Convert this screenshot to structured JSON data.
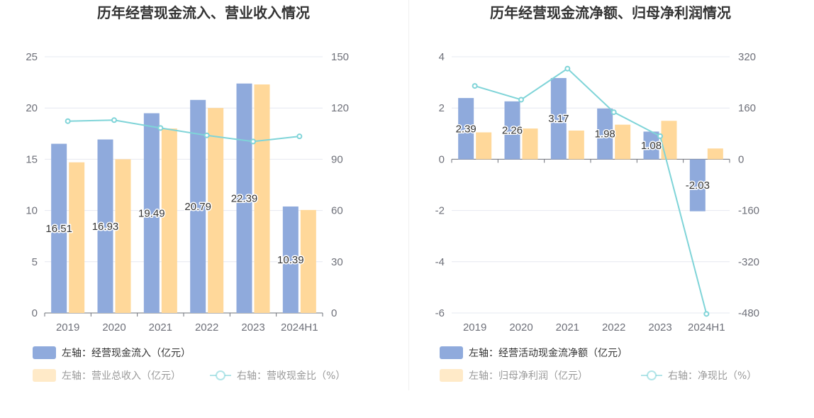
{
  "colors": {
    "bar_blue": "#8faadc",
    "bar_orange": "#ffd89a",
    "line_teal": "#7fd4d8",
    "axis": "#6e7079",
    "grid": "#e6e8f0",
    "title": "#333333",
    "legend_text_active": "#333333",
    "legend_text_muted": "#999999"
  },
  "chart_data": [
    {
      "type": "bar",
      "title": "历年经营现金流入、营业收入情况",
      "categories": [
        "2019",
        "2020",
        "2021",
        "2022",
        "2023",
        "2024H1"
      ],
      "left_axis": {
        "ylim": [
          0,
          25
        ],
        "ticks": [
          "0",
          "5",
          "10",
          "15",
          "20",
          "25"
        ]
      },
      "right_axis": {
        "ylim": [
          0,
          150
        ],
        "ticks": [
          "0",
          "30",
          "60",
          "90",
          "120",
          "150"
        ]
      },
      "grid": true,
      "legend_position": "bottom-left",
      "series": [
        {
          "name": "左轴：经营现金流入（亿元）",
          "type": "bar",
          "axis": "left",
          "color": "#8faadc",
          "values": [
            16.51,
            16.93,
            19.49,
            20.79,
            22.39,
            10.39
          ],
          "show_labels": true,
          "labels": [
            "16.51",
            "16.93",
            "19.49",
            "20.79",
            "22.39",
            "10.39"
          ]
        },
        {
          "name": "左轴：营业总收入（亿元）",
          "type": "bar",
          "axis": "left",
          "color": "#ffd89a",
          "values": [
            14.7,
            15.0,
            18.0,
            20.0,
            22.3,
            10.05
          ],
          "show_labels": false
        },
        {
          "name": "右轴：营收现金比（%）",
          "type": "line",
          "axis": "right",
          "color": "#7fd4d8",
          "values": [
            112.3,
            112.9,
            108.3,
            104.0,
            100.4,
            103.4
          ],
          "show_labels": false
        }
      ]
    },
    {
      "type": "bar",
      "title": "历年经营现金流净额、归母净利润情况",
      "categories": [
        "2019",
        "2020",
        "2021",
        "2022",
        "2023",
        "2024H1"
      ],
      "left_axis": {
        "ylim": [
          -6,
          4
        ],
        "ticks": [
          "-6",
          "-4",
          "-2",
          "0",
          "2",
          "4"
        ]
      },
      "right_axis": {
        "ylim": [
          -480,
          320
        ],
        "ticks": [
          "-480",
          "-320",
          "-160",
          "0",
          "160",
          "320"
        ]
      },
      "grid": true,
      "legend_position": "bottom-left",
      "series": [
        {
          "name": "左轴：经营活动现金流净额（亿元）",
          "type": "bar",
          "axis": "left",
          "color": "#8faadc",
          "values": [
            2.39,
            2.26,
            3.17,
            1.98,
            1.08,
            -2.03
          ],
          "show_labels": true,
          "labels": [
            "2.39",
            "2.26",
            "3.17",
            "1.98",
            "1.08",
            "-2.03"
          ]
        },
        {
          "name": "左轴：归母净利润（亿元）",
          "type": "bar",
          "axis": "left",
          "color": "#ffd89a",
          "values": [
            1.05,
            1.2,
            1.12,
            1.35,
            1.5,
            0.42
          ],
          "show_labels": false
        },
        {
          "name": "右轴：净现比（%）",
          "type": "line",
          "axis": "right",
          "color": "#7fd4d8",
          "values": [
            229,
            186,
            283,
            147,
            72,
            -483
          ],
          "show_labels": false
        }
      ]
    }
  ]
}
